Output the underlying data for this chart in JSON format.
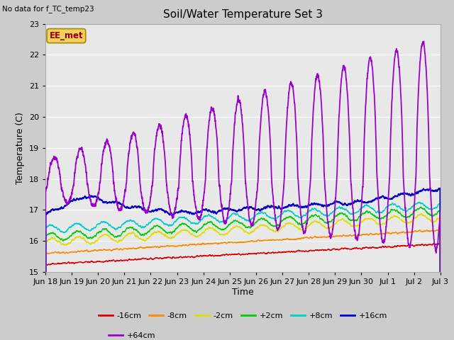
{
  "title": "Soil/Water Temperature Set 3",
  "xlabel": "Time",
  "ylabel": "Temperature (C)",
  "ylim": [
    15.0,
    23.0
  ],
  "yticks": [
    15.0,
    16.0,
    17.0,
    18.0,
    19.0,
    20.0,
    21.0,
    22.0,
    23.0
  ],
  "note": "No data for f_TC_temp23",
  "legend_entries": [
    "-16cm",
    "-8cm",
    "-2cm",
    "+2cm",
    "+8cm",
    "+16cm",
    "+64cm"
  ],
  "legend_colors": [
    "#dd0000",
    "#ff8800",
    "#dddd00",
    "#00cc00",
    "#00cccc",
    "#0000cc",
    "#9900cc"
  ],
  "annotation_label": "EE_met",
  "n_points": 3600,
  "x_start": 0,
  "x_end": 15,
  "xtick_labels": [
    "Jun 18",
    "Jun 19",
    "Jun 20",
    "Jun 21",
    "Jun 22",
    "Jun 23",
    "Jun 24",
    "Jun 25",
    "Jun 26",
    "Jun 27",
    "Jun 28",
    "Jun 29",
    "Jun 30",
    "Jul 1",
    "Jul 2",
    "Jul 3"
  ],
  "xtick_positions": [
    0,
    1,
    2,
    3,
    4,
    5,
    6,
    7,
    8,
    9,
    10,
    11,
    12,
    13,
    14,
    15
  ]
}
